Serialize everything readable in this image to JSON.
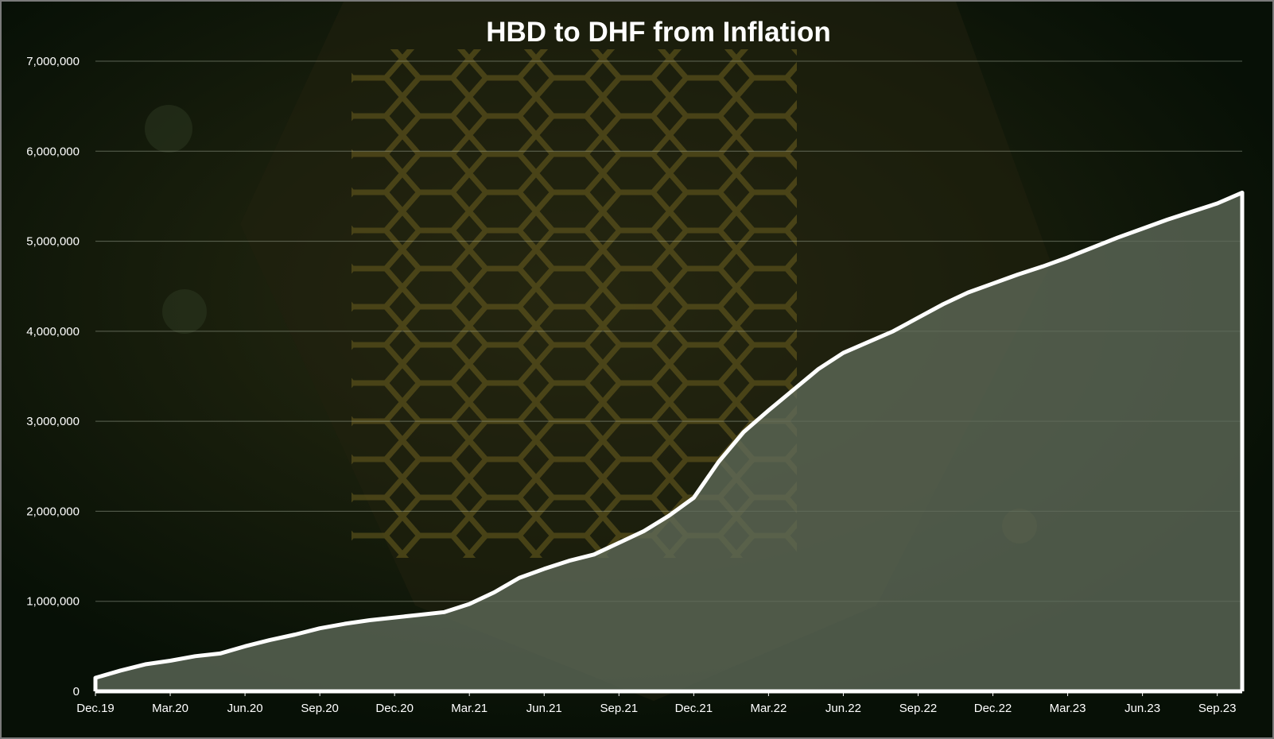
{
  "colors": {
    "background": "#0a1408",
    "line": "#ffffff",
    "area_fill": "#5f6a5a",
    "gridline": "#b8c0b0",
    "honeycomb_accent": "#6b5e1e"
  },
  "chart_data": {
    "type": "area",
    "title": "HBD to DHF from Inflation",
    "xlabel": "",
    "ylabel": "",
    "ylim": [
      0,
      7000000
    ],
    "grid": true,
    "legend": "none",
    "y_ticks": [
      "0",
      "1,000,000",
      "2,000,000",
      "3,000,000",
      "4,000,000",
      "5,000,000",
      "6,000,000",
      "7,000,000"
    ],
    "x_ticks": [
      "Dec.19",
      "Mar.20",
      "Jun.20",
      "Sep.20",
      "Dec.20",
      "Mar.21",
      "Jun.21",
      "Sep.21",
      "Dec.21",
      "Mar.22",
      "Jun.22",
      "Sep.22",
      "Dec.22",
      "Mar.23",
      "Jun.23",
      "Sep.23"
    ],
    "series": [
      {
        "x": [
          "Dec.19",
          "Jan.20",
          "Feb.20",
          "Mar.20",
          "Apr.20",
          "May.20",
          "Jun.20",
          "Jul.20",
          "Aug.20",
          "Sep.20",
          "Oct.20",
          "Nov.20",
          "Dec.20",
          "Jan.21",
          "Feb.21",
          "Mar.21",
          "Apr.21",
          "May.21",
          "Jun.21",
          "Jul.21",
          "Aug.21",
          "Sep.21",
          "Oct.21",
          "Nov.21",
          "Dec.21",
          "Jan.22",
          "Feb.22",
          "Mar.22",
          "Apr.22",
          "May.22",
          "Jun.22",
          "Jul.22",
          "Aug.22",
          "Sep.22",
          "Oct.22",
          "Nov.22",
          "Dec.22",
          "Jan.23",
          "Feb.23",
          "Mar.23",
          "Apr.23",
          "May.23",
          "Jun.23",
          "Jul.23",
          "Aug.23",
          "Sep.23",
          "Oct.23"
        ],
        "values": [
          150000,
          230000,
          300000,
          340000,
          390000,
          420000,
          500000,
          570000,
          630000,
          700000,
          750000,
          790000,
          820000,
          850000,
          880000,
          970000,
          1100000,
          1260000,
          1360000,
          1450000,
          1520000,
          1650000,
          1780000,
          1950000,
          2150000,
          2550000,
          2880000,
          3120000,
          3350000,
          3580000,
          3760000,
          3880000,
          4000000,
          4150000,
          4300000,
          4430000,
          4530000,
          4630000,
          4720000,
          4820000,
          4930000,
          5040000,
          5140000,
          5240000,
          5330000,
          5420000,
          5540000
        ]
      }
    ]
  }
}
